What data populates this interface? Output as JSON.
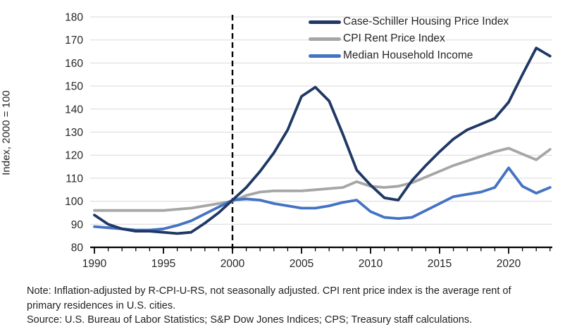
{
  "note": "Note: Inflation-adjusted by R-CPI-U-RS, not seasonally adjusted. CPI rent price index is the average rent of primary residences in U.S. cities.",
  "source": "Source: U.S. Bureau of Labor Statistics; S&P Dow Jones Indices; CPS; Treasury staff calculations.",
  "chart_data": {
    "type": "line",
    "title": "",
    "xlabel": "",
    "ylabel": "Index, 2000 = 100",
    "ylim": [
      80,
      180
    ],
    "yticks": [
      80,
      90,
      100,
      110,
      120,
      130,
      140,
      150,
      160,
      170,
      180
    ],
    "xticks_labeled": [
      1990,
      1995,
      2000,
      2005,
      2010,
      2015,
      2020
    ],
    "grid": "horizontal",
    "legend_position": "top-right",
    "vline": {
      "x": 2000,
      "style": "dashed",
      "color": "#000000"
    },
    "x": [
      1990,
      1991,
      1992,
      1993,
      1994,
      1995,
      1996,
      1997,
      1998,
      1999,
      2000,
      2001,
      2002,
      2003,
      2004,
      2005,
      2006,
      2007,
      2008,
      2009,
      2010,
      2011,
      2012,
      2013,
      2014,
      2015,
      2016,
      2017,
      2018,
      2019,
      2020,
      2021,
      2022,
      2023
    ],
    "series": [
      {
        "name": "Case-Schiller Housing Price Index",
        "color": "#1F3864",
        "values": [
          94,
          90,
          88,
          87,
          87,
          86.5,
          86,
          86.5,
          90.5,
          95,
          100.5,
          106,
          113,
          121,
          131,
          145.5,
          149.5,
          143.5,
          129,
          113.5,
          107,
          101.5,
          100.5,
          109,
          115.5,
          121.5,
          127,
          131,
          133.5,
          136,
          143,
          155,
          166.5,
          163
        ]
      },
      {
        "name": "CPI Rent Price Index",
        "color": "#A6A6A6",
        "values": [
          96,
          96,
          96,
          96,
          96,
          96,
          96.5,
          97,
          98,
          99,
          100,
          102.5,
          104,
          104.5,
          104.5,
          104.5,
          105,
          105.5,
          106,
          108.5,
          106.5,
          106,
          106.5,
          108,
          110.5,
          113,
          115.5,
          117.5,
          119.5,
          121.5,
          123,
          120.5,
          118,
          122.5
        ]
      },
      {
        "name": "Median Household Income",
        "color": "#4472C4",
        "values": [
          89,
          88.5,
          88,
          87.5,
          87.5,
          88,
          89.5,
          91.5,
          94.5,
          97.5,
          100.5,
          101,
          100.5,
          99,
          98,
          97,
          97,
          98,
          99.5,
          100.5,
          95.5,
          93,
          92.5,
          93,
          96,
          99,
          102,
          103,
          104,
          106,
          114.5,
          106.5,
          103.5,
          106
        ]
      }
    ]
  }
}
